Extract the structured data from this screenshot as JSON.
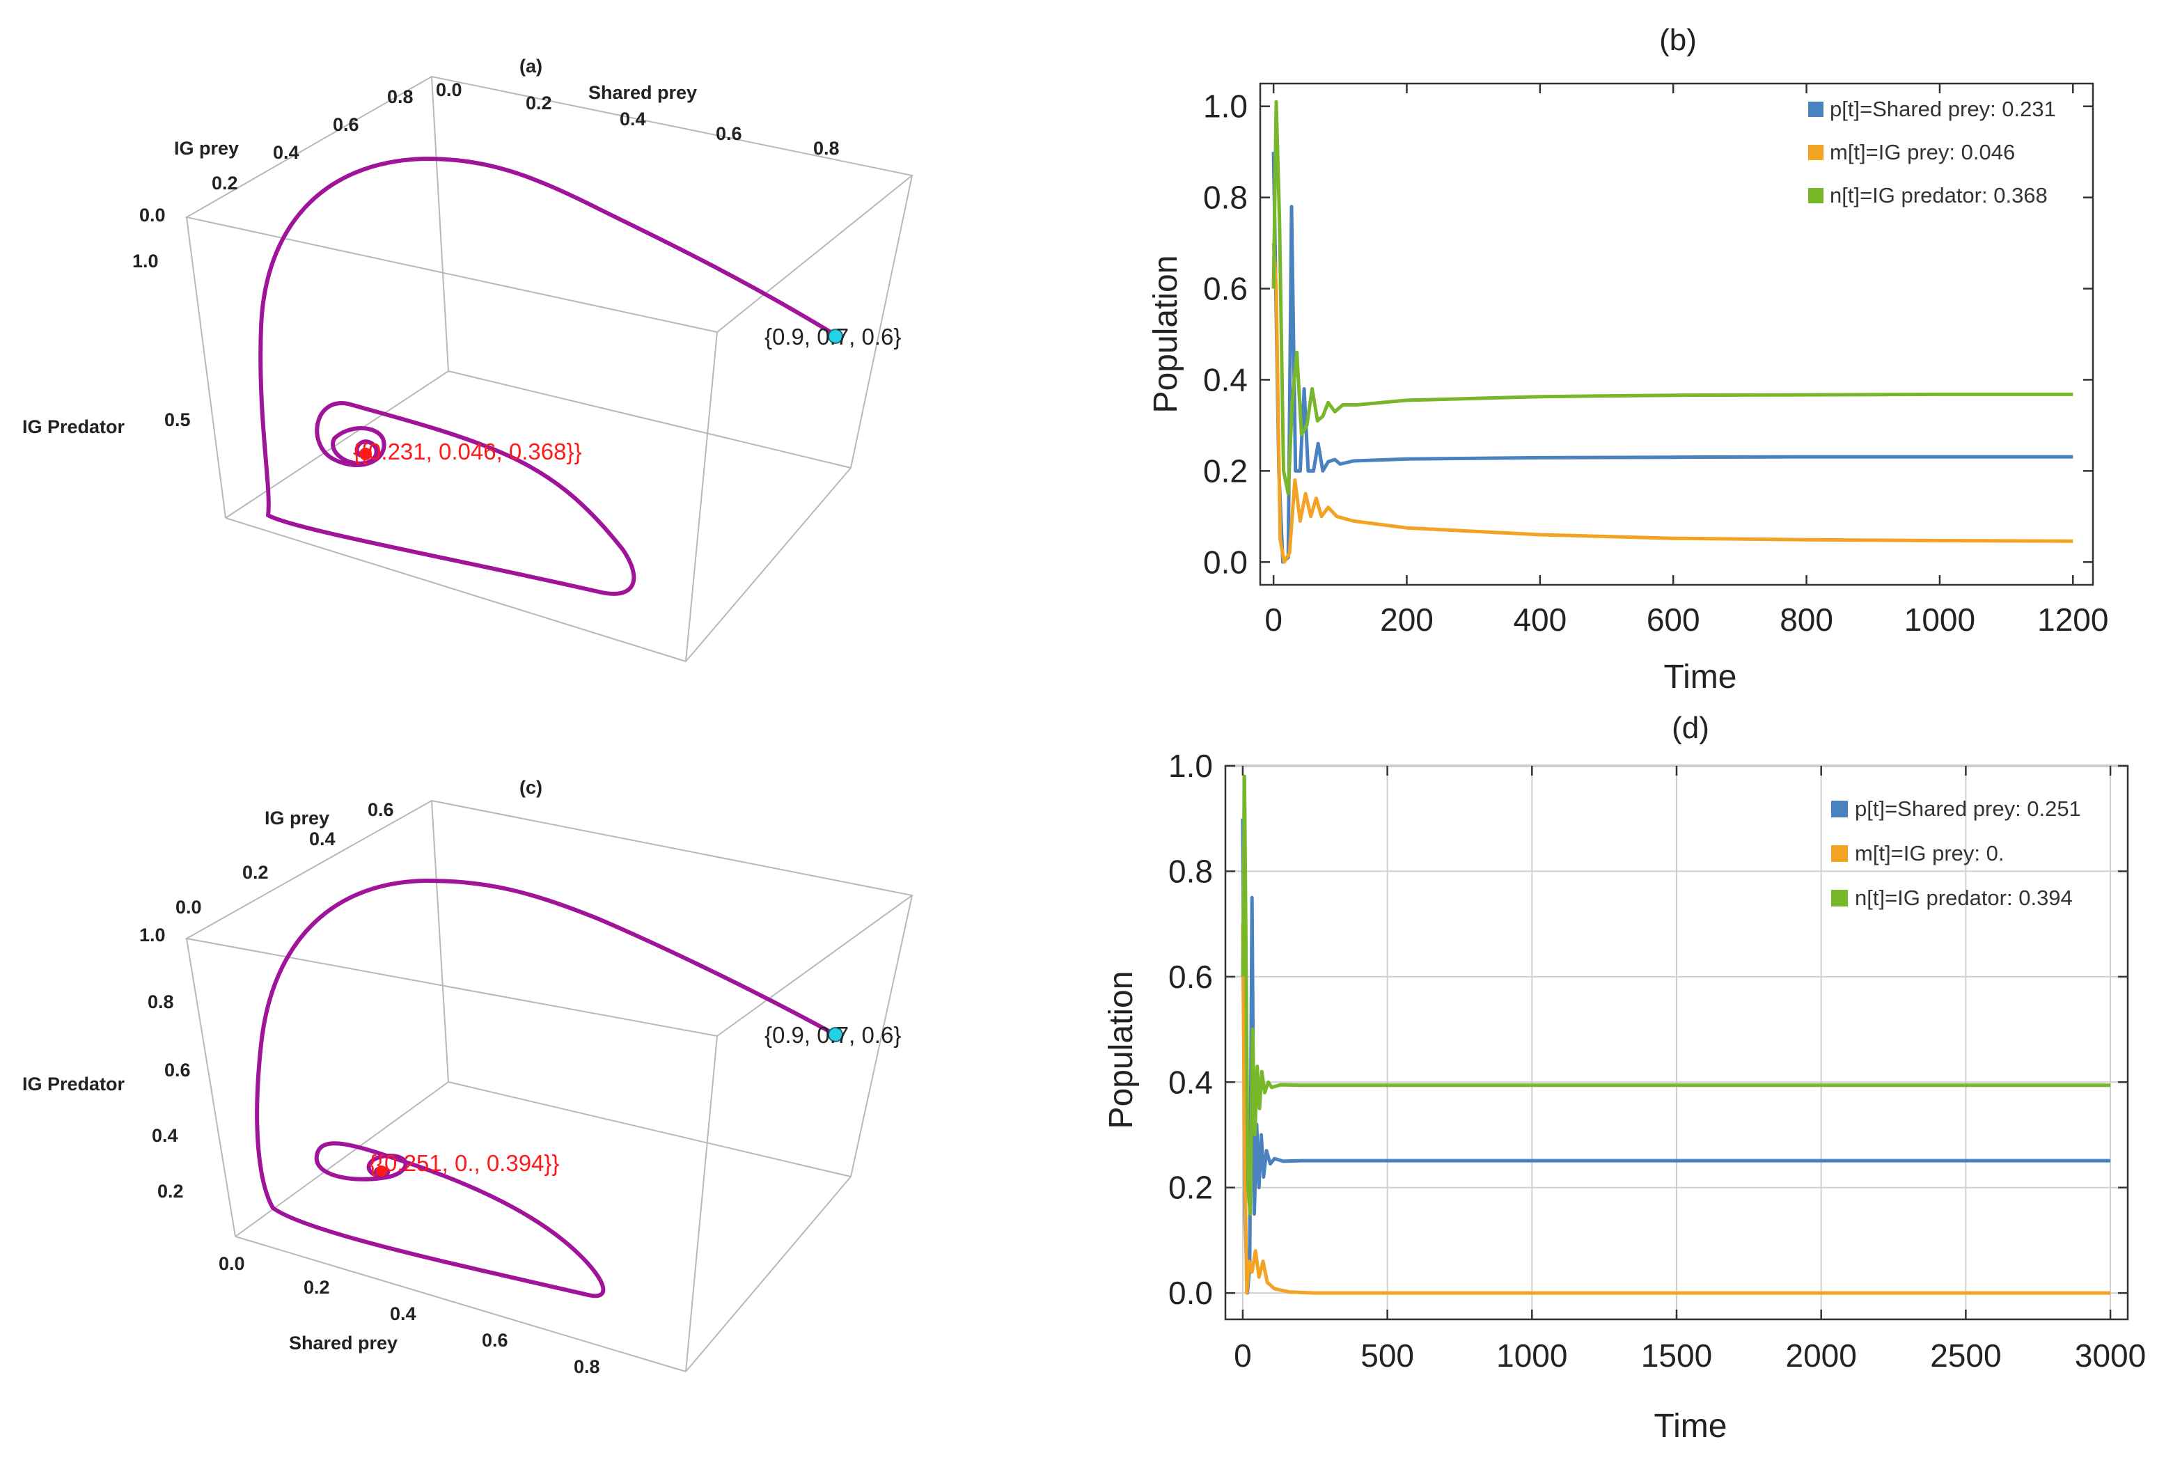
{
  "chart_data": [
    {
      "id": "a",
      "type": "line",
      "subtype": "3d-phase-portrait",
      "title": "(a)",
      "axes": {
        "x": "Shared prey",
        "y": "IG prey",
        "z": "IG Predator"
      },
      "x_ticks": [
        "0.0",
        "0.2",
        "0.4",
        "0.6",
        "0.8"
      ],
      "y_ticks": [
        "0.0",
        "0.2",
        "0.4",
        "0.6",
        "0.8"
      ],
      "z_ticks": [
        "1.0",
        "0.5"
      ],
      "start_point": [
        0.9,
        0.7,
        0.6
      ],
      "start_label": "{0.9, 0.7, 0.6}",
      "equilibrium": [
        0.231,
        0.046,
        0.368
      ],
      "equilibrium_label": "{{0.231, 0.046, 0.368}}",
      "colors": {
        "trajectory": "#a0149a",
        "start": "#22d3e6",
        "equilibrium": "#ff1a1a"
      }
    },
    {
      "id": "b",
      "type": "line",
      "title": "(b)",
      "xlabel": "Time",
      "ylabel": "Population",
      "xlim": [
        -20,
        1230
      ],
      "ylim": [
        -0.05,
        1.05
      ],
      "xticks": [
        0,
        200,
        400,
        600,
        800,
        1000,
        1200
      ],
      "yticks": [
        0.0,
        0.2,
        0.4,
        0.6,
        0.8,
        1.0
      ],
      "grid": false,
      "legend_position": "top-right",
      "series": [
        {
          "name": "p[t]=Shared prey: 0.231",
          "color": "#4a81bf",
          "initial": 0.9,
          "final": 0.231,
          "points": [
            [
              0,
              0.9
            ],
            [
              8,
              0.2
            ],
            [
              14,
              0.0
            ],
            [
              22,
              0.01
            ],
            [
              27,
              0.78
            ],
            [
              33,
              0.2
            ],
            [
              40,
              0.2
            ],
            [
              46,
              0.38
            ],
            [
              52,
              0.2
            ],
            [
              60,
              0.2
            ],
            [
              67,
              0.26
            ],
            [
              74,
              0.2
            ],
            [
              82,
              0.22
            ],
            [
              92,
              0.225
            ],
            [
              100,
              0.215
            ],
            [
              120,
              0.222
            ],
            [
              200,
              0.226
            ],
            [
              400,
              0.229
            ],
            [
              600,
              0.23
            ],
            [
              800,
              0.231
            ],
            [
              1000,
              0.231
            ],
            [
              1200,
              0.231
            ]
          ]
        },
        {
          "name": "m[t]=IG prey: 0.046",
          "color": "#f2a324",
          "initial": 0.7,
          "final": 0.046,
          "points": [
            [
              0,
              0.7
            ],
            [
              4,
              0.6
            ],
            [
              10,
              0.05
            ],
            [
              16,
              0.0
            ],
            [
              24,
              0.02
            ],
            [
              32,
              0.18
            ],
            [
              40,
              0.09
            ],
            [
              48,
              0.15
            ],
            [
              56,
              0.1
            ],
            [
              64,
              0.14
            ],
            [
              72,
              0.1
            ],
            [
              82,
              0.12
            ],
            [
              95,
              0.1
            ],
            [
              120,
              0.09
            ],
            [
              200,
              0.075
            ],
            [
              400,
              0.06
            ],
            [
              600,
              0.052
            ],
            [
              800,
              0.049
            ],
            [
              1000,
              0.047
            ],
            [
              1200,
              0.046
            ]
          ]
        },
        {
          "name": "n[t]=IG predator: 0.368",
          "color": "#78b72a",
          "initial": 0.6,
          "final": 0.368,
          "points": [
            [
              0,
              0.6
            ],
            [
              4,
              1.01
            ],
            [
              9,
              0.75
            ],
            [
              15,
              0.2
            ],
            [
              22,
              0.15
            ],
            [
              28,
              0.35
            ],
            [
              35,
              0.46
            ],
            [
              42,
              0.28
            ],
            [
              50,
              0.3
            ],
            [
              58,
              0.38
            ],
            [
              66,
              0.31
            ],
            [
              74,
              0.32
            ],
            [
              82,
              0.35
            ],
            [
              92,
              0.33
            ],
            [
              104,
              0.345
            ],
            [
              125,
              0.345
            ],
            [
              200,
              0.355
            ],
            [
              400,
              0.363
            ],
            [
              600,
              0.366
            ],
            [
              800,
              0.367
            ],
            [
              1000,
              0.368
            ],
            [
              1200,
              0.368
            ]
          ]
        }
      ]
    },
    {
      "id": "c",
      "type": "line",
      "subtype": "3d-phase-portrait",
      "title": "(c)",
      "axes": {
        "x": "Shared prey",
        "y": "IG prey",
        "z": "IG Predator"
      },
      "x_ticks": [
        "0.0",
        "0.2",
        "0.4",
        "0.6",
        "0.8"
      ],
      "y_ticks": [
        "0.0",
        "0.2",
        "0.4",
        "0.6"
      ],
      "z_ticks": [
        "1.0",
        "0.8",
        "0.6",
        "0.4",
        "0.2"
      ],
      "start_point": [
        0.9,
        0.7,
        0.6
      ],
      "start_label": "{0.9, 0.7, 0.6}",
      "equilibrium": [
        0.251,
        0.0,
        0.394
      ],
      "equilibrium_label": "{{0.251, 0., 0.394}}",
      "colors": {
        "trajectory": "#a0149a",
        "start": "#22d3e6",
        "equilibrium": "#ff1a1a"
      }
    },
    {
      "id": "d",
      "type": "line",
      "title": "(d)",
      "xlabel": "Time",
      "ylabel": "Population",
      "xlim": [
        -60,
        3060
      ],
      "ylim": [
        -0.05,
        1.0
      ],
      "xticks": [
        0,
        500,
        1000,
        1500,
        2000,
        2500,
        3000
      ],
      "yticks": [
        0.0,
        0.2,
        0.4,
        0.6,
        0.8,
        1.0
      ],
      "grid": true,
      "legend_position": "top-right",
      "series": [
        {
          "name": "p[t]=Shared prey: 0.251",
          "color": "#4a81bf",
          "initial": 0.9,
          "final": 0.251,
          "points": [
            [
              0,
              0.9
            ],
            [
              8,
              0.15
            ],
            [
              16,
              0.0
            ],
            [
              24,
              0.05
            ],
            [
              32,
              0.75
            ],
            [
              40,
              0.15
            ],
            [
              48,
              0.32
            ],
            [
              56,
              0.2
            ],
            [
              64,
              0.3
            ],
            [
              72,
              0.22
            ],
            [
              82,
              0.27
            ],
            [
              95,
              0.245
            ],
            [
              110,
              0.255
            ],
            [
              140,
              0.25
            ],
            [
              200,
              0.251
            ],
            [
              1000,
              0.251
            ],
            [
              2000,
              0.251
            ],
            [
              3000,
              0.251
            ]
          ]
        },
        {
          "name": "m[t]=IG prey: 0.",
          "color": "#f2a324",
          "initial": 0.7,
          "final": 0.0,
          "points": [
            [
              0,
              0.7
            ],
            [
              6,
              0.3
            ],
            [
              14,
              0.0
            ],
            [
              22,
              0.06
            ],
            [
              32,
              0.04
            ],
            [
              44,
              0.08
            ],
            [
              56,
              0.03
            ],
            [
              70,
              0.06
            ],
            [
              85,
              0.02
            ],
            [
              110,
              0.008
            ],
            [
              160,
              0.002
            ],
            [
              250,
              0.0
            ],
            [
              1000,
              0.0
            ],
            [
              2000,
              0.0
            ],
            [
              3000,
              0.0
            ]
          ]
        },
        {
          "name": "n[t]=IG predator: 0.394",
          "color": "#78b72a",
          "initial": 0.6,
          "final": 0.394,
          "points": [
            [
              0,
              0.6
            ],
            [
              6,
              0.98
            ],
            [
              12,
              0.6
            ],
            [
              18,
              0.2
            ],
            [
              26,
              0.15
            ],
            [
              34,
              0.5
            ],
            [
              42,
              0.3
            ],
            [
              50,
              0.43
            ],
            [
              58,
              0.35
            ],
            [
              66,
              0.42
            ],
            [
              76,
              0.38
            ],
            [
              88,
              0.4
            ],
            [
              100,
              0.39
            ],
            [
              130,
              0.395
            ],
            [
              200,
              0.394
            ],
            [
              1000,
              0.394
            ],
            [
              2000,
              0.394
            ],
            [
              3000,
              0.394
            ]
          ]
        }
      ]
    }
  ]
}
